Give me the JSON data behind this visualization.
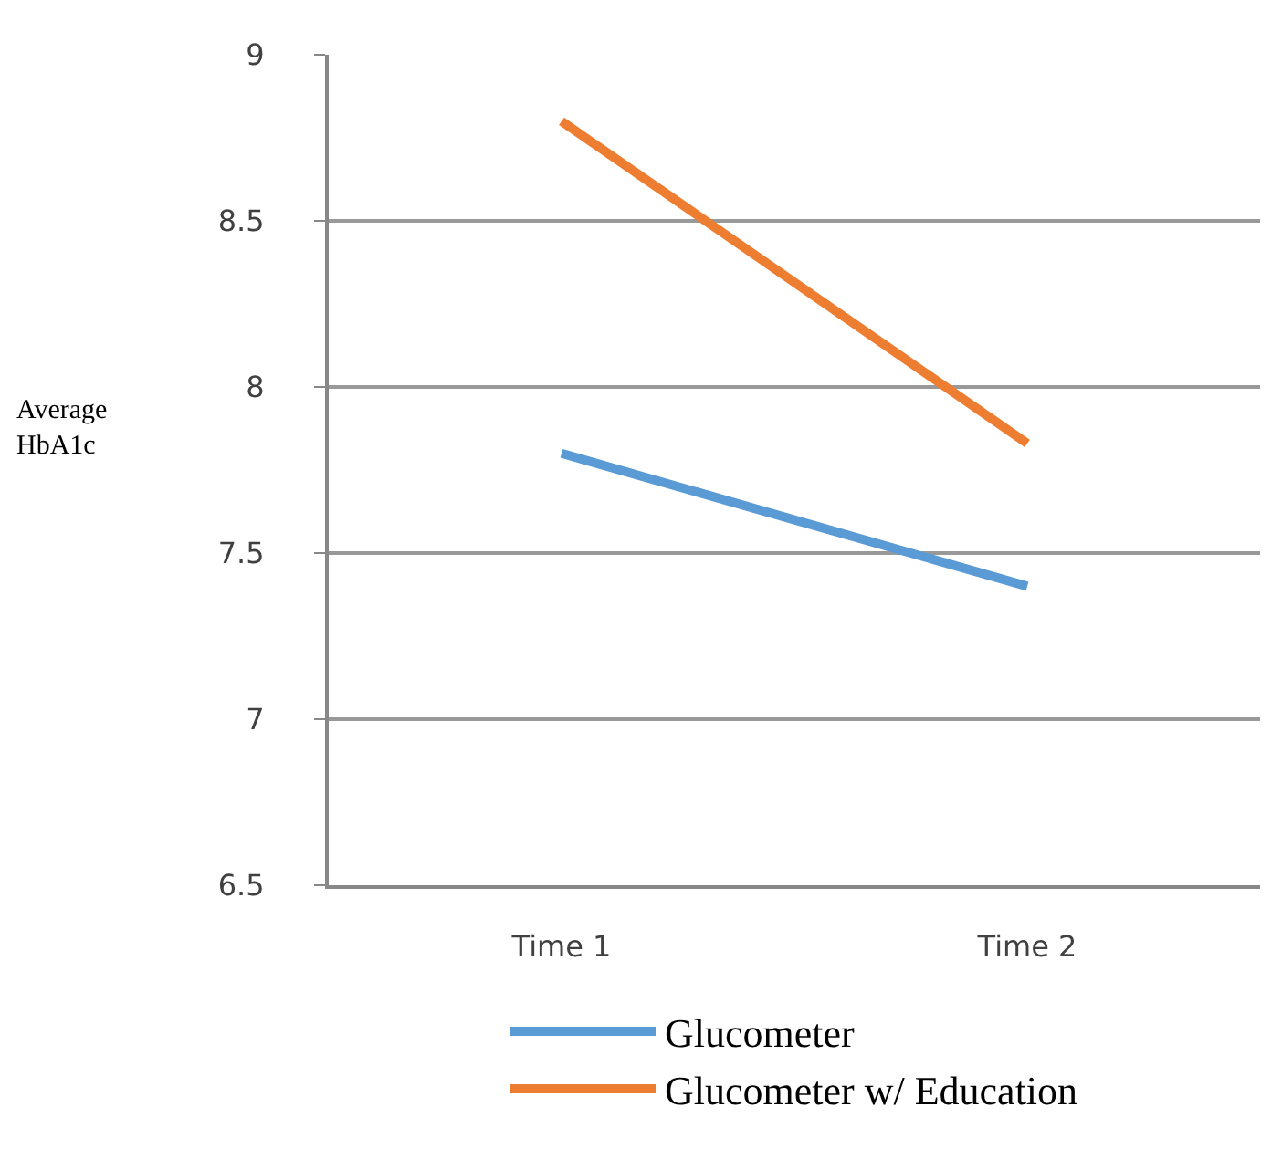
{
  "chart_data": {
    "type": "line",
    "ylabel": "Average HbA1c",
    "categories": [
      "Time 1",
      "Time 2"
    ],
    "series": [
      {
        "name": "Glucometer",
        "color": "#5b9bd5",
        "values": [
          7.8,
          7.4
        ]
      },
      {
        "name": "Glucometer w/ Education",
        "color": "#ed7d31",
        "values": [
          8.8,
          7.83
        ]
      }
    ],
    "ylim": [
      6.5,
      9
    ],
    "yticks": [
      6.5,
      7,
      7.5,
      8,
      8.5,
      9
    ],
    "grid": "y",
    "legend": "bottom",
    "marker": "none",
    "line_style": "solid"
  }
}
